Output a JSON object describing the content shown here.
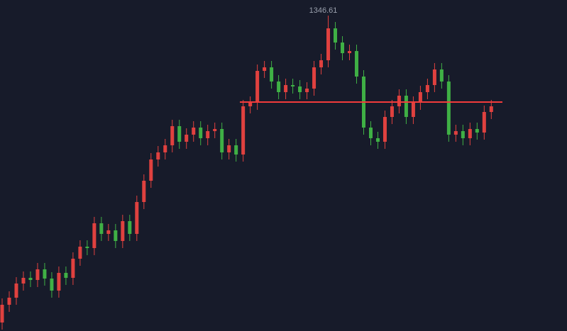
{
  "chart_data": {
    "type": "candlestick",
    "open": [
      1238.36,
      1244.61,
      1247.11,
      1252.11,
      1254.11,
      1253.36,
      1257.11,
      1253.86,
      1249.61,
      1255.86,
      1254.11,
      1260.86,
      1265.11,
      1264.61,
      1273.36,
      1269.61,
      1270.86,
      1267.11,
      1274.11,
      1269.61,
      1280.86,
      1288.36,
      1295.86,
      1298.36,
      1300.86,
      1307.61,
      1302.11,
      1304.61,
      1307.11,
      1303.36,
      1305.86,
      1306.61,
      1298.36,
      1300.86,
      1297.61,
      1314.61,
      1315.86,
      1327.11,
      1328.36,
      1323.36,
      1319.61,
      1322.11,
      1321.61,
      1319.61,
      1320.86,
      1328.36,
      1330.86,
      1342.11,
      1337.11,
      1333.36,
      1334.11,
      1325.11,
      1307.11,
      1303.36,
      1302.11,
      1310.86,
      1314.61,
      1318.36,
      1310.86,
      1315.86,
      1319.61,
      1322.11,
      1327.61,
      1323.36,
      1304.61,
      1305.86,
      1303.36,
      1306.61,
      1305.36,
      1312.61
    ],
    "high": [
      1246.86,
      1249.36,
      1254.36,
      1256.36,
      1256.36,
      1259.36,
      1259.36,
      1256.11,
      1258.11,
      1258.11,
      1263.11,
      1267.36,
      1267.36,
      1275.61,
      1275.61,
      1273.11,
      1273.11,
      1276.36,
      1276.36,
      1283.11,
      1290.61,
      1298.11,
      1300.61,
      1303.11,
      1309.86,
      1309.86,
      1306.86,
      1309.36,
      1309.36,
      1308.11,
      1308.86,
      1308.86,
      1303.11,
      1303.11,
      1316.86,
      1318.11,
      1329.36,
      1330.61,
      1330.61,
      1325.61,
      1324.36,
      1324.36,
      1323.86,
      1323.11,
      1330.61,
      1333.11,
      1346.61,
      1344.36,
      1339.36,
      1336.36,
      1336.36,
      1327.36,
      1309.36,
      1305.61,
      1313.11,
      1316.86,
      1320.61,
      1320.61,
      1318.11,
      1321.86,
      1324.36,
      1329.86,
      1329.86,
      1325.61,
      1308.11,
      1308.11,
      1308.86,
      1308.86,
      1314.86,
      1316.86
    ],
    "low": [
      1235.86,
      1242.11,
      1244.61,
      1249.61,
      1250.86,
      1250.86,
      1251.36,
      1247.11,
      1247.11,
      1251.61,
      1251.61,
      1258.36,
      1262.11,
      1262.11,
      1267.11,
      1267.11,
      1264.61,
      1264.61,
      1267.11,
      1267.11,
      1278.36,
      1285.86,
      1293.36,
      1295.86,
      1298.36,
      1299.61,
      1299.61,
      1302.11,
      1300.86,
      1300.86,
      1303.36,
      1295.86,
      1295.86,
      1295.11,
      1295.11,
      1312.11,
      1313.36,
      1324.61,
      1320.86,
      1317.11,
      1317.11,
      1319.11,
      1317.11,
      1317.11,
      1318.36,
      1325.86,
      1328.36,
      1334.61,
      1330.86,
      1330.86,
      1322.61,
      1304.61,
      1300.86,
      1299.61,
      1299.61,
      1308.36,
      1312.11,
      1308.36,
      1308.36,
      1313.36,
      1317.11,
      1319.61,
      1320.86,
      1302.11,
      1302.11,
      1300.86,
      1300.86,
      1302.86,
      1302.86,
      1310.11
    ],
    "close": [
      1244.61,
      1247.11,
      1252.11,
      1254.11,
      1253.36,
      1257.11,
      1253.86,
      1249.61,
      1255.86,
      1254.11,
      1260.86,
      1265.11,
      1264.61,
      1273.36,
      1269.61,
      1270.86,
      1267.11,
      1274.11,
      1269.61,
      1280.86,
      1288.36,
      1295.86,
      1298.36,
      1300.86,
      1307.61,
      1302.11,
      1304.61,
      1307.11,
      1303.36,
      1305.86,
      1306.61,
      1298.36,
      1300.86,
      1297.61,
      1314.61,
      1315.86,
      1327.11,
      1328.36,
      1323.36,
      1319.61,
      1322.11,
      1321.61,
      1319.61,
      1320.86,
      1328.36,
      1330.86,
      1342.11,
      1337.11,
      1333.36,
      1334.11,
      1325.11,
      1307.11,
      1303.36,
      1302.11,
      1310.86,
      1314.61,
      1318.36,
      1310.86,
      1315.86,
      1319.61,
      1322.11,
      1327.61,
      1323.36,
      1304.61,
      1305.86,
      1303.36,
      1306.61,
      1305.36,
      1312.61,
      1314.61
    ],
    "up_color": "#e0413f",
    "down_color": "#3fb045",
    "ylim": [
      1235.36,
      1352.11
    ],
    "hline": {
      "value": 1316.11,
      "color": "#f23b3b"
    }
  }
}
